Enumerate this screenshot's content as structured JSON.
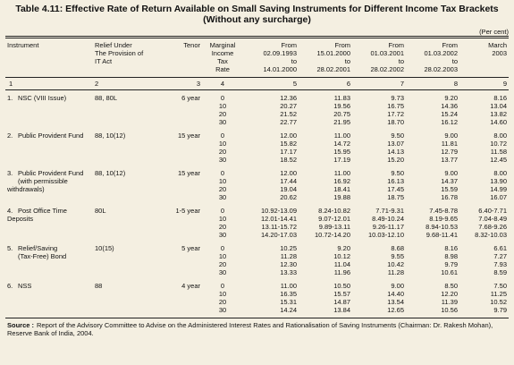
{
  "title": [
    "Table 4.11: Effective Rate of Return Available on Small Saving Instruments for Different Income Tax Brackets",
    "(Without any surcharge)"
  ],
  "unit": "(Per cent)",
  "table": {
    "headers": [
      [
        "Instrument"
      ],
      [
        "Relief Under",
        "The Provision of",
        "IT Act"
      ],
      [
        "Tenor"
      ],
      [
        "Marginal",
        "Income",
        "Tax",
        "Rate"
      ],
      [
        "From",
        "02.09.1993",
        "to",
        "14.01.2000"
      ],
      [
        "From",
        "15.01.2000",
        "to",
        "28.02.2001"
      ],
      [
        "From",
        "01.03.2001",
        "to",
        "28.02.2002"
      ],
      [
        "From",
        "01.03.2002",
        "to",
        "28.02.2003"
      ],
      [
        "March",
        "2003"
      ]
    ],
    "column_numbers": [
      1,
      2,
      3,
      4,
      5,
      6,
      7,
      8,
      9
    ],
    "rows": [
      {
        "number": "1.",
        "instrument": [
          "NSC (VIII Issue)"
        ],
        "relief": "88, 80L",
        "tenor": "6 year",
        "tax_rates": [
          "0",
          "10",
          "20",
          "30"
        ],
        "values": [
          [
            "12.36",
            "20.27",
            "21.52",
            "22.77"
          ],
          [
            "11.83",
            "19.56",
            "20.75",
            "21.95"
          ],
          [
            "9.73",
            "16.75",
            "17.72",
            "18.70"
          ],
          [
            "9.20",
            "14.36",
            "15.24",
            "16.12"
          ],
          [
            "8.16",
            "13.04",
            "13.82",
            "14.60"
          ]
        ]
      },
      {
        "number": "2.",
        "instrument": [
          "Public Provident Fund"
        ],
        "relief": "88, 10(12)",
        "tenor": "15 year",
        "tax_rates": [
          "0",
          "10",
          "20",
          "30"
        ],
        "values": [
          [
            "12.00",
            "15.82",
            "17.17",
            "18.52"
          ],
          [
            "11.00",
            "14.72",
            "15.95",
            "17.19"
          ],
          [
            "9.50",
            "13.07",
            "14.13",
            "15.20"
          ],
          [
            "9.00",
            "11.81",
            "12.79",
            "13.77"
          ],
          [
            "8.00",
            "10.72",
            "11.58",
            "12.45"
          ]
        ]
      },
      {
        "number": "3.",
        "instrument": [
          "Public Provident Fund",
          "(with permissible withdrawals)"
        ],
        "relief": "88, 10(12)",
        "tenor": "15 year",
        "tax_rates": [
          "0",
          "10",
          "20",
          "30"
        ],
        "values": [
          [
            "12.00",
            "17.44",
            "19.04",
            "20.62"
          ],
          [
            "11.00",
            "16.92",
            "18.41",
            "19.88"
          ],
          [
            "9.50",
            "16.13",
            "17.45",
            "18.75"
          ],
          [
            "9.00",
            "14.37",
            "15.59",
            "16.78"
          ],
          [
            "8.00",
            "13.90",
            "14.99",
            "16.07"
          ]
        ]
      },
      {
        "number": "4.",
        "instrument": [
          "Post Office Time Deposits"
        ],
        "relief": "80L",
        "tenor": "1-5 year",
        "tax_rates": [
          "0",
          "10",
          "20",
          "30"
        ],
        "values": [
          [
            "10.92-13.09",
            "12.01-14.41",
            "13.11-15.72",
            "14.20-17.03"
          ],
          [
            "8.24-10.82",
            "9.07-12.01",
            "9.89-13.11",
            "10.72-14.20"
          ],
          [
            "7.71-9.31",
            "8.49-10.24",
            "9.26-11.17",
            "10.03-12.10"
          ],
          [
            "7.45-8.78",
            "8.19-9.65",
            "8.94-10.53",
            "9.68-11.41"
          ],
          [
            "6.40-7.71",
            "7.04-8.49",
            "7.68-9.26",
            "8.32-10.03"
          ]
        ]
      },
      {
        "number": "5.",
        "instrument": [
          "Relief/Saving",
          "(Tax-Free) Bond"
        ],
        "relief": "10(15)",
        "tenor": "5 year",
        "tax_rates": [
          "0",
          "10",
          "20",
          "30"
        ],
        "values": [
          [
            "10.25",
            "11.28",
            "12.30",
            "13.33"
          ],
          [
            "9.20",
            "10.12",
            "11.04",
            "11.96"
          ],
          [
            "8.68",
            "9.55",
            "10.42",
            "11.28"
          ],
          [
            "8.16",
            "8.98",
            "9.79",
            "10.61"
          ],
          [
            "6.61",
            "7.27",
            "7.93",
            "8.59"
          ]
        ]
      },
      {
        "number": "6.",
        "instrument": [
          "NSS"
        ],
        "relief": "88",
        "tenor": "4 year",
        "tax_rates": [
          "0",
          "10",
          "20",
          "30"
        ],
        "values": [
          [
            "11.00",
            "16.35",
            "15.31",
            "14.24"
          ],
          [
            "10.50",
            "15.57",
            "14.87",
            "13.84"
          ],
          [
            "9.00",
            "14.40",
            "13.54",
            "12.65"
          ],
          [
            "8.50",
            "12.20",
            "11.39",
            "10.56"
          ],
          [
            "7.50",
            "11.25",
            "10.52",
            "9.79"
          ]
        ]
      }
    ]
  },
  "source": {
    "label": "Source :",
    "text": "Report of the Advisory Committee to Advise on the Administered Interest Rates and Rationalisation of Saving Instruments (Chairman: Dr. Rakesh Mohan), Reserve Bank of India, 2004."
  }
}
